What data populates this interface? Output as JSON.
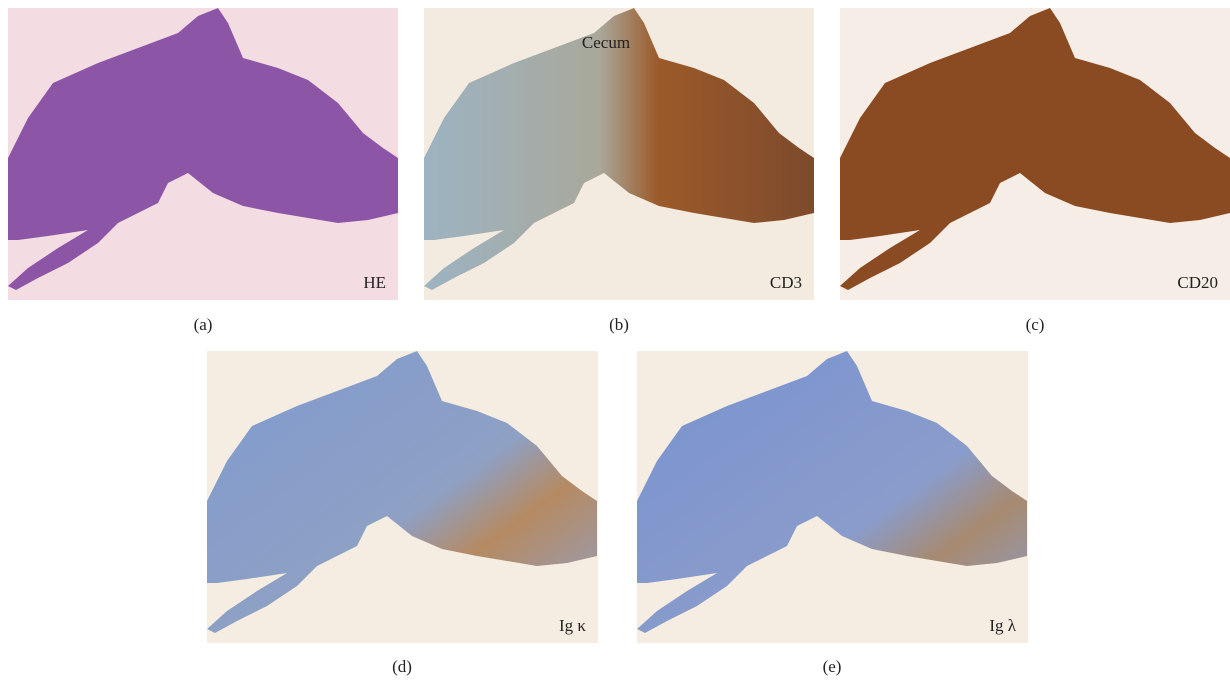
{
  "figure": {
    "panels": [
      {
        "label": "HE",
        "caption": "(a)"
      },
      {
        "label": "CD3",
        "caption": "(b)",
        "annotation": "Cecum"
      },
      {
        "label": "CD20",
        "caption": "(c)"
      },
      {
        "label": "Ig κ",
        "caption": "(d)"
      },
      {
        "label": "Ig λ",
        "caption": "(e)"
      }
    ]
  }
}
